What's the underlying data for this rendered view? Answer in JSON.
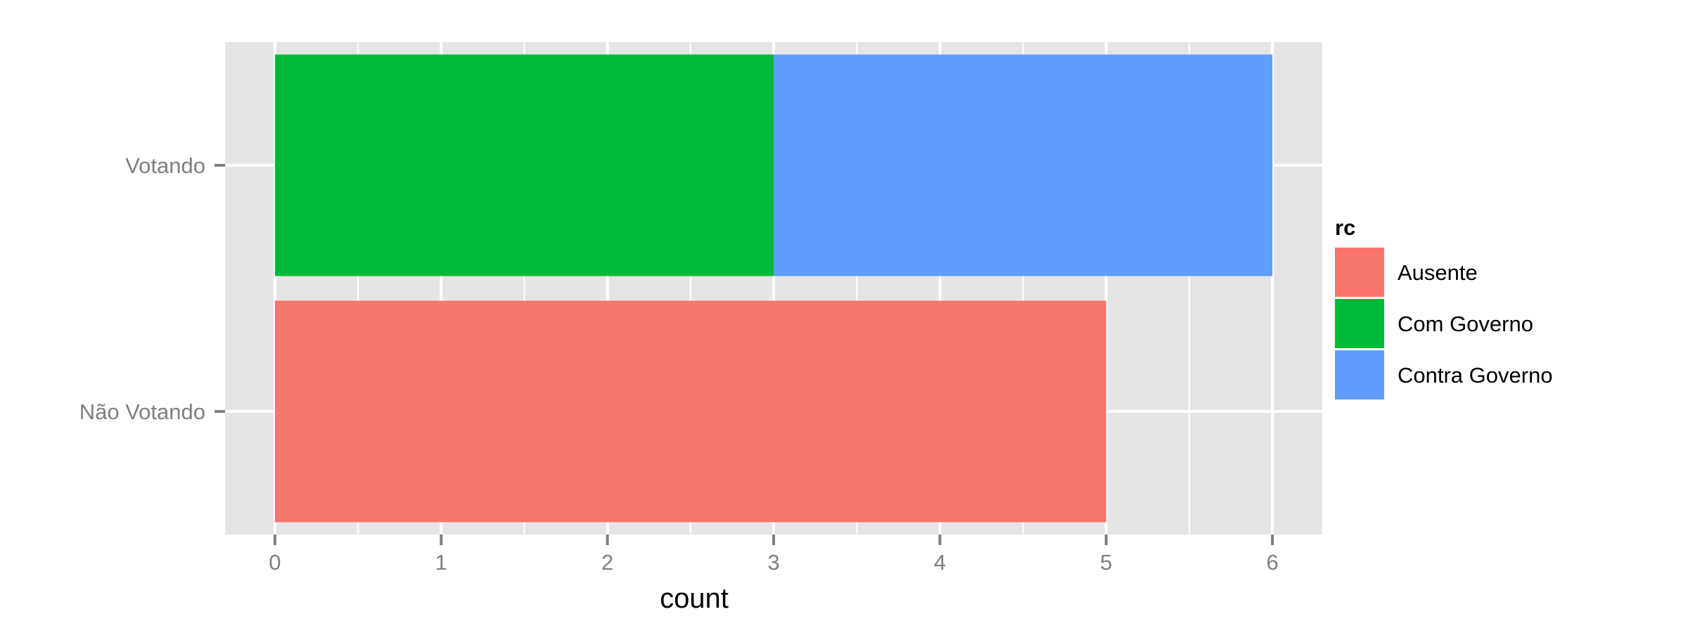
{
  "chart_data": {
    "type": "bar",
    "orientation": "horizontal",
    "stacked": true,
    "categories": [
      "Votando",
      "Não Votando"
    ],
    "series": [
      {
        "name": "Ausente",
        "color": "#F8766D",
        "values": [
          0,
          5
        ]
      },
      {
        "name": "Com Governo",
        "color": "#00BA38",
        "values": [
          3,
          0
        ]
      },
      {
        "name": "Contra Governo",
        "color": "#619CFF",
        "values": [
          3,
          0
        ]
      }
    ],
    "xlabel": "count",
    "ylabel": "",
    "xlim": [
      -0.3,
      6.3
    ],
    "x_ticks": [
      "0",
      "1",
      "2",
      "3",
      "4",
      "5",
      "6"
    ],
    "grid": true,
    "background_color": "#E5E5E5",
    "grid_color": "#FFFFFF",
    "legend": {
      "title": "rc",
      "placement": "right"
    }
  }
}
